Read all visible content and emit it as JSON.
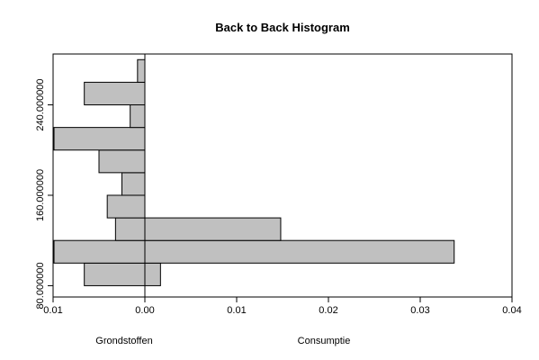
{
  "chart_data": {
    "type": "histogram",
    "title": "Back to Back Histogram",
    "bins": [
      80,
      100,
      120,
      140,
      160,
      180,
      200,
      220,
      240,
      260,
      280
    ],
    "series": [
      {
        "name": "Grondstoffen",
        "color": "#c0c0c0",
        "side": "left",
        "values": [
          0.0066,
          0.0099,
          0.0032,
          0.0041,
          0.0025,
          0.005,
          0.0099,
          0.0016,
          0.0066,
          0.0008
        ]
      },
      {
        "name": "Consumptie",
        "color": "#c0c0c0",
        "side": "right",
        "values": [
          0.0017,
          0.0337,
          0.0148,
          0,
          0,
          0,
          0,
          0,
          0,
          0
        ]
      }
    ],
    "xlim": [
      -0.01,
      0.04
    ],
    "xticks": [
      {
        "value": -0.01,
        "label": "0.01"
      },
      {
        "value": 0,
        "label": "0.00"
      },
      0.01,
      0.02,
      0.03,
      0.04
    ],
    "ylim": [
      70,
      285
    ],
    "yticks": [
      {
        "value": 80,
        "label": "80.000000"
      },
      {
        "value": 160,
        "label": "160.000000"
      },
      {
        "value": 240,
        "label": "240.000000"
      }
    ]
  }
}
